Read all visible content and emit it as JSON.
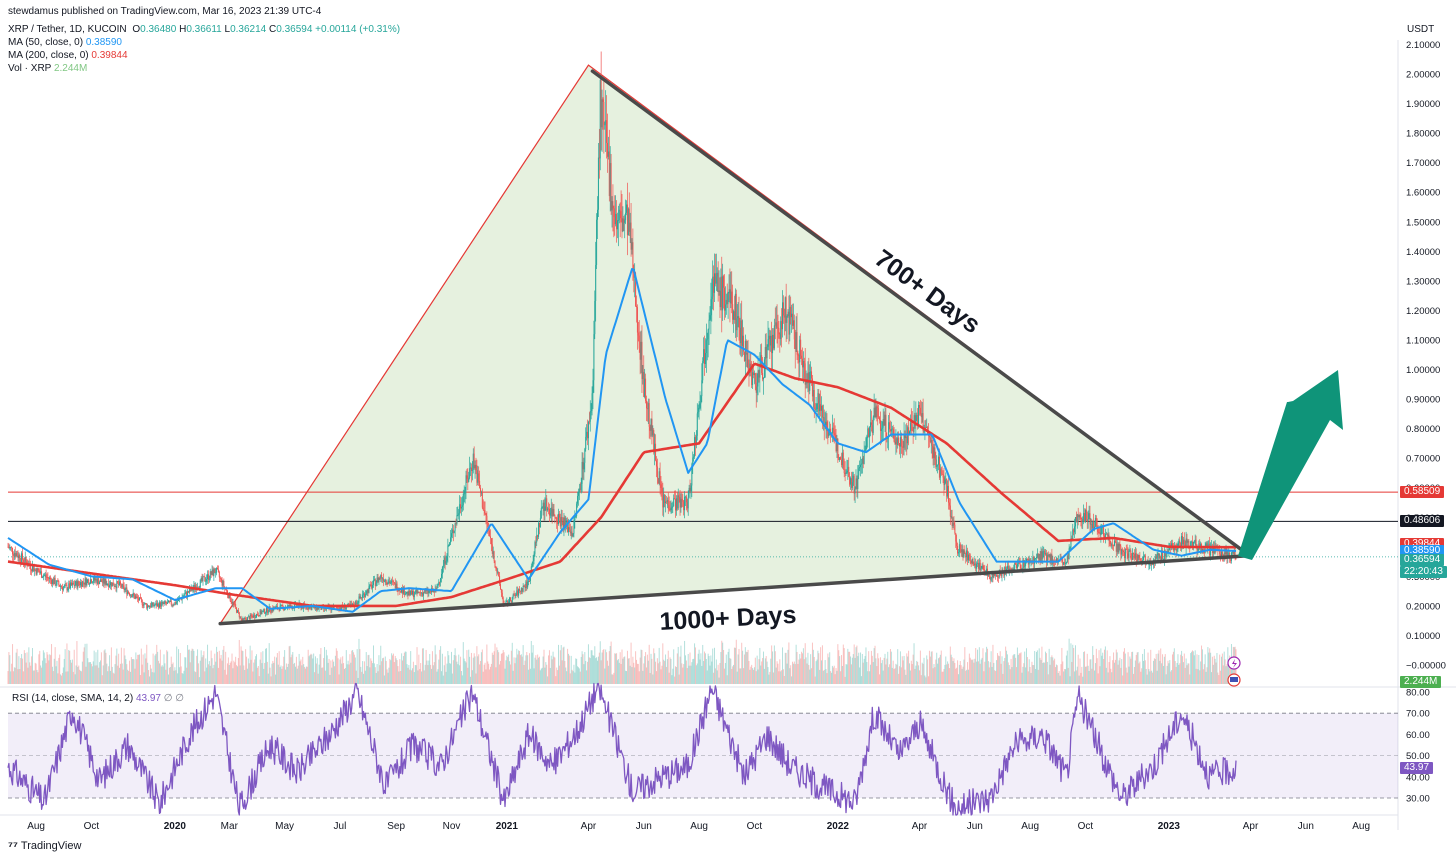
{
  "publisher": "stewdamus published on TradingView.com, Mar 16, 2023 21:39 UTC-4",
  "legend": {
    "symbol": "XRP / Tether, 1D, KUCOIN",
    "o_label": "O",
    "o": "0.36480",
    "h_label": "H",
    "h": "0.36611",
    "l_label": "L",
    "l": "0.36214",
    "c_label": "C",
    "c": "0.36594",
    "change": "+0.00114 (+0.31%)",
    "ma50_label": "MA (50, close, 0)",
    "ma50_value": "0.38590",
    "ma200_label": "MA (200, close, 0)",
    "ma200_value": "0.39844",
    "vol_label": "Vol · XRP",
    "vol_value": "2.244M",
    "rsi_label": "RSI (14, close, SMA, 14, 2)",
    "rsi_value": "43.97",
    "rsi_extra": "∅ ∅"
  },
  "currency": "USDT",
  "annotations": {
    "top_line": "700+ Days",
    "bottom_line": "1000+ Days"
  },
  "price_tags": {
    "line1": "0.58509",
    "line2": "0.48606",
    "ma200": "0.39844",
    "ma50": "0.38590",
    "last": "0.36594",
    "countdown": "22:20:43",
    "volume": "2.244M",
    "rsi": "43.97"
  },
  "footer": {
    "brand": "TradingView"
  },
  "colors": {
    "up": "#26a69a",
    "down": "#ef5350",
    "ma50": "#2196f3",
    "ma200": "#e53935",
    "triangle_fill": "#e3f0dc",
    "rsi": "#7e57c2",
    "arrow": "#0f9479"
  },
  "chart_data": {
    "type": "line",
    "title": "XRP / Tether, 1D, KUCOIN",
    "xlabel": "",
    "ylabel": "USDT",
    "ylim": [
      0.0,
      2.1
    ],
    "y_ticks": [
      "2.10000",
      "2.00000",
      "1.90000",
      "1.80000",
      "1.70000",
      "1.60000",
      "1.50000",
      "1.40000",
      "1.30000",
      "1.20000",
      "1.10000",
      "1.00000",
      "0.90000",
      "0.80000",
      "0.70000",
      "0.60000",
      "0.50000",
      "0.40000",
      "0.30000",
      "0.20000",
      "0.10000",
      "−0.00000"
    ],
    "y_tick_values": [
      2.1,
      2.0,
      1.9,
      1.8,
      1.7,
      1.6,
      1.5,
      1.4,
      1.3,
      1.2,
      1.1,
      1.0,
      0.9,
      0.8,
      0.7,
      0.6,
      0.5,
      0.4,
      0.3,
      0.2,
      0.1,
      0.0
    ],
    "x_ticks": [
      {
        "label": "Aug",
        "date": "2019-08-01",
        "bold": false
      },
      {
        "label": "Oct",
        "date": "2019-10-01",
        "bold": false
      },
      {
        "label": "2020",
        "date": "2020-01-01",
        "bold": true
      },
      {
        "label": "Mar",
        "date": "2020-03-01",
        "bold": false
      },
      {
        "label": "May",
        "date": "2020-05-01",
        "bold": false
      },
      {
        "label": "Jul",
        "date": "2020-07-01",
        "bold": false
      },
      {
        "label": "Sep",
        "date": "2020-09-01",
        "bold": false
      },
      {
        "label": "Nov",
        "date": "2020-11-01",
        "bold": false
      },
      {
        "label": "2021",
        "date": "2021-01-01",
        "bold": true
      },
      {
        "label": "Apr",
        "date": "2021-04-01",
        "bold": false
      },
      {
        "label": "Jun",
        "date": "2021-06-01",
        "bold": false
      },
      {
        "label": "Aug",
        "date": "2021-08-01",
        "bold": false
      },
      {
        "label": "Oct",
        "date": "2021-10-01",
        "bold": false
      },
      {
        "label": "2022",
        "date": "2022-01-01",
        "bold": true
      },
      {
        "label": "Apr",
        "date": "2022-04-01",
        "bold": false
      },
      {
        "label": "Jun",
        "date": "2022-06-01",
        "bold": false
      },
      {
        "label": "Aug",
        "date": "2022-08-01",
        "bold": false
      },
      {
        "label": "Oct",
        "date": "2022-10-01",
        "bold": false
      },
      {
        "label": "2023",
        "date": "2023-01-01",
        "bold": true
      },
      {
        "label": "Apr",
        "date": "2023-04-01",
        "bold": false
      },
      {
        "label": "Jun",
        "date": "2023-06-01",
        "bold": false
      },
      {
        "label": "Aug",
        "date": "2023-08-01",
        "bold": false
      }
    ],
    "series": [
      {
        "name": "XRP / Tether, 1D, KUCOIN",
        "points": [
          [
            "2019-07-01",
            0.4
          ],
          [
            "2019-08-01",
            0.32
          ],
          [
            "2019-09-01",
            0.26
          ],
          [
            "2019-10-01",
            0.29
          ],
          [
            "2019-11-01",
            0.27
          ],
          [
            "2019-12-01",
            0.2
          ],
          [
            "2020-01-01",
            0.21
          ],
          [
            "2020-02-15",
            0.32
          ],
          [
            "2020-03-15",
            0.15
          ],
          [
            "2020-04-15",
            0.19
          ],
          [
            "2020-05-15",
            0.2
          ],
          [
            "2020-06-15",
            0.19
          ],
          [
            "2020-07-15",
            0.2
          ],
          [
            "2020-08-15",
            0.3
          ],
          [
            "2020-09-15",
            0.24
          ],
          [
            "2020-10-15",
            0.25
          ],
          [
            "2020-11-25",
            0.7
          ],
          [
            "2020-12-29",
            0.2
          ],
          [
            "2021-01-25",
            0.28
          ],
          [
            "2021-02-10",
            0.55
          ],
          [
            "2021-03-15",
            0.45
          ],
          [
            "2021-04-05",
            0.9
          ],
          [
            "2021-04-14",
            1.9
          ],
          [
            "2021-05-01",
            1.5
          ],
          [
            "2021-05-15",
            1.5
          ],
          [
            "2021-06-01",
            0.95
          ],
          [
            "2021-06-22",
            0.55
          ],
          [
            "2021-07-20",
            0.55
          ],
          [
            "2021-08-15",
            1.3
          ],
          [
            "2021-09-10",
            1.2
          ],
          [
            "2021-10-01",
            0.95
          ],
          [
            "2021-11-05",
            1.2
          ],
          [
            "2021-11-25",
            1.0
          ],
          [
            "2021-12-15",
            0.85
          ],
          [
            "2022-01-20",
            0.6
          ],
          [
            "2022-02-10",
            0.85
          ],
          [
            "2022-03-10",
            0.75
          ],
          [
            "2022-04-01",
            0.85
          ],
          [
            "2022-05-01",
            0.6
          ],
          [
            "2022-05-12",
            0.4
          ],
          [
            "2022-06-18",
            0.3
          ],
          [
            "2022-07-15",
            0.33
          ],
          [
            "2022-08-15",
            0.37
          ],
          [
            "2022-09-10",
            0.34
          ],
          [
            "2022-09-23",
            0.52
          ],
          [
            "2022-10-15",
            0.47
          ],
          [
            "2022-11-10",
            0.38
          ],
          [
            "2022-12-15",
            0.35
          ],
          [
            "2023-01-15",
            0.42
          ],
          [
            "2023-02-15",
            0.39
          ],
          [
            "2023-03-16",
            0.36594
          ]
        ]
      },
      {
        "name": "MA (50, close, 0)",
        "points": [
          [
            "2019-07-01",
            0.43
          ],
          [
            "2019-08-15",
            0.34
          ],
          [
            "2019-10-01",
            0.3
          ],
          [
            "2019-11-15",
            0.29
          ],
          [
            "2020-01-01",
            0.22
          ],
          [
            "2020-02-15",
            0.26
          ],
          [
            "2020-03-15",
            0.26
          ],
          [
            "2020-04-15",
            0.19
          ],
          [
            "2020-06-01",
            0.2
          ],
          [
            "2020-07-15",
            0.18
          ],
          [
            "2020-08-15",
            0.25
          ],
          [
            "2020-09-15",
            0.26
          ],
          [
            "2020-11-01",
            0.25
          ],
          [
            "2020-12-15",
            0.48
          ],
          [
            "2021-01-25",
            0.29
          ],
          [
            "2021-03-01",
            0.45
          ],
          [
            "2021-04-01",
            0.56
          ],
          [
            "2021-04-20",
            1.05
          ],
          [
            "2021-05-20",
            1.35
          ],
          [
            "2021-06-25",
            0.9
          ],
          [
            "2021-07-20",
            0.65
          ],
          [
            "2021-08-10",
            0.75
          ],
          [
            "2021-09-01",
            1.1
          ],
          [
            "2021-10-01",
            1.05
          ],
          [
            "2021-11-01",
            0.95
          ],
          [
            "2021-12-01",
            0.88
          ],
          [
            "2022-01-01",
            0.75
          ],
          [
            "2022-02-01",
            0.72
          ],
          [
            "2022-03-01",
            0.78
          ],
          [
            "2022-04-15",
            0.78
          ],
          [
            "2022-05-15",
            0.55
          ],
          [
            "2022-06-25",
            0.35
          ],
          [
            "2022-08-01",
            0.35
          ],
          [
            "2022-09-01",
            0.35
          ],
          [
            "2022-10-10",
            0.46
          ],
          [
            "2022-11-01",
            0.48
          ],
          [
            "2022-12-15",
            0.39
          ],
          [
            "2023-01-15",
            0.37
          ],
          [
            "2023-02-15",
            0.39
          ],
          [
            "2023-03-16",
            0.3859
          ]
        ]
      },
      {
        "name": "MA (200, close, 0)",
        "points": [
          [
            "2019-07-01",
            0.35
          ],
          [
            "2019-10-01",
            0.31
          ],
          [
            "2020-01-01",
            0.27
          ],
          [
            "2020-03-01",
            0.24
          ],
          [
            "2020-06-01",
            0.2
          ],
          [
            "2020-09-01",
            0.2
          ],
          [
            "2020-11-01",
            0.23
          ],
          [
            "2021-01-01",
            0.29
          ],
          [
            "2021-03-01",
            0.35
          ],
          [
            "2021-04-15",
            0.5
          ],
          [
            "2021-06-01",
            0.72
          ],
          [
            "2021-08-01",
            0.75
          ],
          [
            "2021-10-01",
            1.02
          ],
          [
            "2021-11-15",
            0.97
          ],
          [
            "2022-01-01",
            0.94
          ],
          [
            "2022-03-01",
            0.87
          ],
          [
            "2022-05-01",
            0.75
          ],
          [
            "2022-07-01",
            0.58
          ],
          [
            "2022-09-01",
            0.42
          ],
          [
            "2022-11-01",
            0.43
          ],
          [
            "2023-01-01",
            0.4
          ],
          [
            "2023-03-16",
            0.39844
          ]
        ]
      },
      {
        "name": "RSI (14, close, SMA, 14, 2)",
        "points": [
          [
            "2019-07-01",
            45
          ],
          [
            "2019-08-10",
            28
          ],
          [
            "2019-09-10",
            72
          ],
          [
            "2019-10-10",
            38
          ],
          [
            "2019-11-10",
            55
          ],
          [
            "2019-12-15",
            27
          ],
          [
            "2020-01-15",
            58
          ],
          [
            "2020-02-15",
            80
          ],
          [
            "2020-03-12",
            25
          ],
          [
            "2020-04-15",
            55
          ],
          [
            "2020-05-15",
            42
          ],
          [
            "2020-06-20",
            60
          ],
          [
            "2020-07-20",
            80
          ],
          [
            "2020-08-20",
            35
          ],
          [
            "2020-09-20",
            55
          ],
          [
            "2020-10-20",
            45
          ],
          [
            "2020-11-24",
            80
          ],
          [
            "2020-12-29",
            28
          ],
          [
            "2021-01-25",
            60
          ],
          [
            "2021-02-20",
            45
          ],
          [
            "2021-03-20",
            62
          ],
          [
            "2021-04-12",
            83
          ],
          [
            "2021-05-20",
            33
          ],
          [
            "2021-06-20",
            40
          ],
          [
            "2021-07-20",
            45
          ],
          [
            "2021-08-15",
            82
          ],
          [
            "2021-09-20",
            40
          ],
          [
            "2021-10-15",
            60
          ],
          [
            "2021-11-10",
            45
          ],
          [
            "2021-12-15",
            35
          ],
          [
            "2022-01-20",
            28
          ],
          [
            "2022-02-10",
            70
          ],
          [
            "2022-03-10",
            50
          ],
          [
            "2022-04-01",
            65
          ],
          [
            "2022-05-10",
            25
          ],
          [
            "2022-06-18",
            30
          ],
          [
            "2022-07-15",
            55
          ],
          [
            "2022-08-15",
            60
          ],
          [
            "2022-09-10",
            40
          ],
          [
            "2022-09-23",
            78
          ],
          [
            "2022-10-20",
            50
          ],
          [
            "2022-11-10",
            30
          ],
          [
            "2022-12-15",
            45
          ],
          [
            "2023-01-15",
            70
          ],
          [
            "2023-02-15",
            40
          ],
          [
            "2023-03-16",
            43.97
          ]
        ]
      }
    ],
    "horizontal_lines": [
      {
        "name": "resistance-line-red",
        "value": 0.58509
      },
      {
        "name": "resistance-line-black",
        "value": 0.48606
      }
    ],
    "rsi_panel": {
      "ylim": [
        20,
        80
      ],
      "ticks": [
        "80.00",
        "70.00",
        "60.00",
        "50.00",
        "40.00",
        "30.00"
      ],
      "tick_values": [
        80,
        70,
        60,
        50,
        40,
        30
      ],
      "band": [
        30,
        70
      ]
    },
    "triangle": {
      "apex": [
        "2021-04-01",
        2.03
      ],
      "left": [
        "2020-02-20",
        0.14
      ],
      "right": [
        "2023-03-31",
        0.37
      ]
    },
    "grid": false,
    "legend_position": "top-left"
  }
}
